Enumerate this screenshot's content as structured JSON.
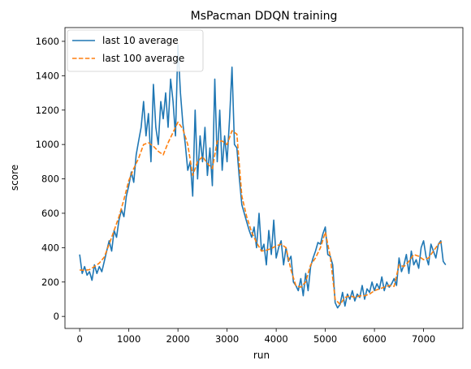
{
  "chart_data": {
    "type": "line",
    "title": "MsPacman DDQN training",
    "xlabel": "run",
    "ylabel": "score",
    "xlim": [
      -300,
      7800
    ],
    "ylim": [
      -70,
      1680
    ],
    "x_ticks": [
      0,
      1000,
      2000,
      3000,
      4000,
      5000,
      6000,
      7000
    ],
    "y_ticks": [
      0,
      200,
      400,
      600,
      800,
      1000,
      1200,
      1400,
      1600
    ],
    "grid": false,
    "legend_position": "top-left",
    "series": [
      {
        "name": "last 10 average",
        "color": "#1f77b4",
        "style": "solid",
        "points": [
          [
            0,
            360
          ],
          [
            50,
            250
          ],
          [
            100,
            290
          ],
          [
            150,
            240
          ],
          [
            200,
            260
          ],
          [
            250,
            210
          ],
          [
            300,
            300
          ],
          [
            350,
            250
          ],
          [
            400,
            290
          ],
          [
            450,
            260
          ],
          [
            500,
            320
          ],
          [
            550,
            380
          ],
          [
            600,
            440
          ],
          [
            650,
            380
          ],
          [
            700,
            500
          ],
          [
            750,
            460
          ],
          [
            800,
            560
          ],
          [
            850,
            620
          ],
          [
            900,
            580
          ],
          [
            950,
            700
          ],
          [
            1000,
            760
          ],
          [
            1050,
            840
          ],
          [
            1100,
            780
          ],
          [
            1150,
            940
          ],
          [
            1200,
            1020
          ],
          [
            1250,
            1100
          ],
          [
            1300,
            1250
          ],
          [
            1350,
            1050
          ],
          [
            1400,
            1180
          ],
          [
            1450,
            900
          ],
          [
            1500,
            1350
          ],
          [
            1550,
            1100
          ],
          [
            1600,
            1000
          ],
          [
            1650,
            1250
          ],
          [
            1700,
            1150
          ],
          [
            1750,
            1300
          ],
          [
            1800,
            1100
          ],
          [
            1850,
            1380
          ],
          [
            1900,
            1250
          ],
          [
            1950,
            1050
          ],
          [
            2000,
            1580
          ],
          [
            2050,
            1300
          ],
          [
            2100,
            1120
          ],
          [
            2150,
            1000
          ],
          [
            2200,
            850
          ],
          [
            2250,
            900
          ],
          [
            2300,
            700
          ],
          [
            2350,
            1200
          ],
          [
            2400,
            800
          ],
          [
            2450,
            1050
          ],
          [
            2500,
            900
          ],
          [
            2550,
            1100
          ],
          [
            2600,
            820
          ],
          [
            2650,
            980
          ],
          [
            2700,
            760
          ],
          [
            2750,
            1380
          ],
          [
            2800,
            900
          ],
          [
            2850,
            1200
          ],
          [
            2900,
            850
          ],
          [
            2950,
            1050
          ],
          [
            3000,
            900
          ],
          [
            3050,
            1150
          ],
          [
            3100,
            1450
          ],
          [
            3150,
            1000
          ],
          [
            3200,
            980
          ],
          [
            3250,
            800
          ],
          [
            3300,
            650
          ],
          [
            3350,
            600
          ],
          [
            3400,
            550
          ],
          [
            3450,
            500
          ],
          [
            3500,
            460
          ],
          [
            3550,
            520
          ],
          [
            3600,
            400
          ],
          [
            3650,
            600
          ],
          [
            3700,
            380
          ],
          [
            3750,
            420
          ],
          [
            3800,
            300
          ],
          [
            3850,
            500
          ],
          [
            3900,
            360
          ],
          [
            3950,
            560
          ],
          [
            4000,
            340
          ],
          [
            4050,
            400
          ],
          [
            4100,
            440
          ],
          [
            4150,
            300
          ],
          [
            4200,
            400
          ],
          [
            4250,
            320
          ],
          [
            4300,
            350
          ],
          [
            4350,
            200
          ],
          [
            4400,
            180
          ],
          [
            4450,
            150
          ],
          [
            4500,
            220
          ],
          [
            4550,
            120
          ],
          [
            4600,
            250
          ],
          [
            4650,
            150
          ],
          [
            4700,
            290
          ],
          [
            4750,
            340
          ],
          [
            4800,
            380
          ],
          [
            4850,
            430
          ],
          [
            4900,
            420
          ],
          [
            4950,
            480
          ],
          [
            5000,
            520
          ],
          [
            5050,
            360
          ],
          [
            5100,
            350
          ],
          [
            5150,
            300
          ],
          [
            5200,
            80
          ],
          [
            5250,
            50
          ],
          [
            5300,
            70
          ],
          [
            5350,
            140
          ],
          [
            5400,
            60
          ],
          [
            5450,
            130
          ],
          [
            5500,
            100
          ],
          [
            5550,
            150
          ],
          [
            5600,
            90
          ],
          [
            5650,
            130
          ],
          [
            5700,
            110
          ],
          [
            5750,
            180
          ],
          [
            5800,
            100
          ],
          [
            5850,
            160
          ],
          [
            5900,
            140
          ],
          [
            5950,
            200
          ],
          [
            6000,
            150
          ],
          [
            6050,
            190
          ],
          [
            6100,
            160
          ],
          [
            6150,
            230
          ],
          [
            6200,
            150
          ],
          [
            6250,
            200
          ],
          [
            6300,
            170
          ],
          [
            6350,
            190
          ],
          [
            6400,
            220
          ],
          [
            6450,
            180
          ],
          [
            6500,
            340
          ],
          [
            6550,
            260
          ],
          [
            6600,
            300
          ],
          [
            6650,
            360
          ],
          [
            6700,
            250
          ],
          [
            6750,
            380
          ],
          [
            6800,
            300
          ],
          [
            6850,
            330
          ],
          [
            6900,
            280
          ],
          [
            6950,
            400
          ],
          [
            7000,
            440
          ],
          [
            7050,
            350
          ],
          [
            7100,
            300
          ],
          [
            7150,
            420
          ],
          [
            7200,
            380
          ],
          [
            7250,
            340
          ],
          [
            7300,
            420
          ],
          [
            7350,
            440
          ],
          [
            7400,
            320
          ],
          [
            7450,
            300
          ]
        ]
      },
      {
        "name": "last 100 average",
        "color": "#ff7f0e",
        "style": "dashed",
        "points": [
          [
            0,
            270
          ],
          [
            100,
            268
          ],
          [
            200,
            272
          ],
          [
            300,
            290
          ],
          [
            400,
            310
          ],
          [
            500,
            345
          ],
          [
            600,
            420
          ],
          [
            700,
            500
          ],
          [
            800,
            580
          ],
          [
            900,
            680
          ],
          [
            1000,
            790
          ],
          [
            1100,
            860
          ],
          [
            1200,
            920
          ],
          [
            1300,
            1000
          ],
          [
            1400,
            1010
          ],
          [
            1500,
            990
          ],
          [
            1600,
            960
          ],
          [
            1700,
            940
          ],
          [
            1800,
            1010
          ],
          [
            1900,
            1070
          ],
          [
            2000,
            1130
          ],
          [
            2100,
            1090
          ],
          [
            2200,
            1000
          ],
          [
            2300,
            820
          ],
          [
            2400,
            900
          ],
          [
            2500,
            930
          ],
          [
            2600,
            890
          ],
          [
            2700,
            860
          ],
          [
            2800,
            1020
          ],
          [
            2900,
            1020
          ],
          [
            3000,
            1000
          ],
          [
            3100,
            1080
          ],
          [
            3200,
            1060
          ],
          [
            3300,
            700
          ],
          [
            3400,
            580
          ],
          [
            3500,
            490
          ],
          [
            3600,
            430
          ],
          [
            3700,
            380
          ],
          [
            3800,
            385
          ],
          [
            3900,
            395
          ],
          [
            4000,
            410
          ],
          [
            4100,
            420
          ],
          [
            4200,
            400
          ],
          [
            4300,
            270
          ],
          [
            4400,
            180
          ],
          [
            4500,
            170
          ],
          [
            4600,
            200
          ],
          [
            4700,
            300
          ],
          [
            4800,
            340
          ],
          [
            4900,
            400
          ],
          [
            5000,
            490
          ],
          [
            5100,
            350
          ],
          [
            5200,
            100
          ],
          [
            5300,
            70
          ],
          [
            5400,
            110
          ],
          [
            5500,
            120
          ],
          [
            5600,
            110
          ],
          [
            5700,
            120
          ],
          [
            5800,
            120
          ],
          [
            5900,
            130
          ],
          [
            6000,
            150
          ],
          [
            6100,
            160
          ],
          [
            6200,
            170
          ],
          [
            6300,
            180
          ],
          [
            6400,
            175
          ],
          [
            6500,
            300
          ],
          [
            6600,
            290
          ],
          [
            6700,
            320
          ],
          [
            6800,
            360
          ],
          [
            6900,
            350
          ],
          [
            7000,
            330
          ],
          [
            7100,
            340
          ],
          [
            7200,
            380
          ],
          [
            7300,
            420
          ],
          [
            7400,
            440
          ]
        ]
      }
    ]
  }
}
